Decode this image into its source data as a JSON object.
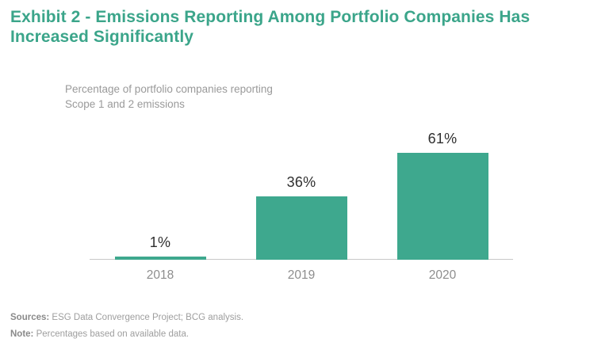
{
  "title": "Exhibit 2 - Emissions Reporting Among Portfolio Companies Has\nIncreased Significantly",
  "chart_data": {
    "type": "bar",
    "title": "Percentage of portfolio companies reporting\nScope 1 and 2 emissions",
    "categories": [
      "2018",
      "2019",
      "2020"
    ],
    "values": [
      1,
      36,
      61
    ],
    "value_labels": [
      "1%",
      "36%",
      "61%"
    ],
    "xlabel": "",
    "ylabel": "Percentage of portfolio companies reporting Scope 1 and 2 emissions",
    "ylim": [
      0,
      70
    ],
    "grid": false,
    "legend_position": "none",
    "bar_color": "#3EA88E",
    "axis_line_color": "#C8C8C8",
    "title_color": "#3BA58A",
    "value_label_color": "#2F2F2F",
    "tick_label_color": "#8D8D8D"
  },
  "footnotes": [
    {
      "label": "Sources:",
      "text": " ESG Data Convergence Project; BCG analysis."
    },
    {
      "label": "Note:",
      "text": " Percentages based on available data."
    }
  ]
}
